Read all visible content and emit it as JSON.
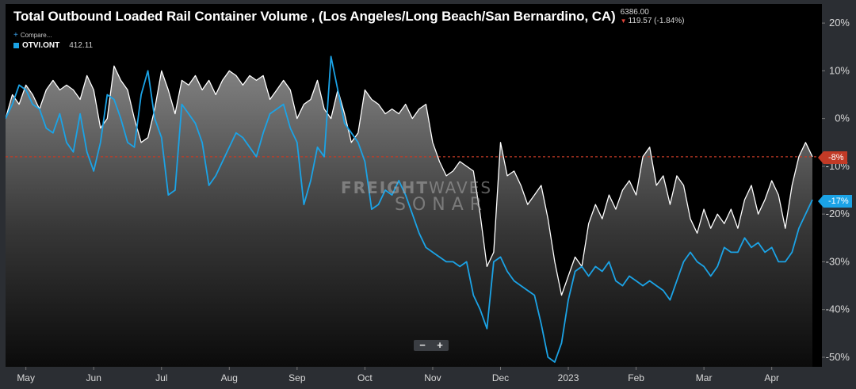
{
  "header": {
    "title": "Total Outbound Loaded Rail Container Volume , (Los Angeles/Long Beach/San Bernardino, CA)",
    "last_value": "6386.00",
    "change": "119.57 (-1.84%)"
  },
  "legend": {
    "compare_label": "Compare...",
    "series_symbol": "OTVI.ONT",
    "series_value": "412.11"
  },
  "watermark": {
    "line1_bold": "FREIGHT",
    "line1_thin": "WAVES",
    "line2": "SONAR"
  },
  "zoom": {
    "minus": "−",
    "plus": "+"
  },
  "tags": {
    "white_series": "-8%",
    "blue_series": "-17%"
  },
  "colors": {
    "white_series": "#ffffff",
    "blue_series": "#1ba3e6",
    "tag_red": "#c23a26"
  },
  "chart_data": {
    "type": "line",
    "title": "Total Outbound Loaded Rail Container Volume , (Los Angeles/Long Beach/San Bernardino, CA)",
    "ylim": [
      -52,
      24
    ],
    "y_ticks": [
      "20%",
      "10%",
      "0%",
      "-10%",
      "-20%",
      "-30%",
      "-40%",
      "-50%"
    ],
    "y_tick_values": [
      20,
      10,
      0,
      -10,
      -20,
      -30,
      -40,
      -50
    ],
    "x_ticks": [
      "May",
      "Jun",
      "Jul",
      "Aug",
      "Sep",
      "Oct",
      "Nov",
      "Dec",
      "2023",
      "Feb",
      "Mar",
      "Apr"
    ],
    "x_tick_positions": [
      0.3,
      1.3,
      2.3,
      3.3,
      4.3,
      5.3,
      6.3,
      7.3,
      8.3,
      9.3,
      10.3,
      11.3
    ],
    "x_range": [
      0,
      11.9
    ],
    "reference_line": -8,
    "series": [
      {
        "name": "Total Outbound Loaded Rail Container Volume",
        "color": "#ffffff",
        "area": true,
        "points": [
          [
            0.0,
            0
          ],
          [
            0.1,
            5
          ],
          [
            0.2,
            3
          ],
          [
            0.3,
            7
          ],
          [
            0.4,
            5
          ],
          [
            0.5,
            2
          ],
          [
            0.6,
            6
          ],
          [
            0.7,
            8
          ],
          [
            0.8,
            6
          ],
          [
            0.9,
            7
          ],
          [
            1.0,
            6
          ],
          [
            1.1,
            4
          ],
          [
            1.2,
            9
          ],
          [
            1.3,
            6
          ],
          [
            1.4,
            -2
          ],
          [
            1.5,
            0
          ],
          [
            1.6,
            11
          ],
          [
            1.7,
            8
          ],
          [
            1.8,
            6
          ],
          [
            1.9,
            0
          ],
          [
            2.0,
            -5
          ],
          [
            2.1,
            -4
          ],
          [
            2.2,
            2
          ],
          [
            2.3,
            10
          ],
          [
            2.4,
            6
          ],
          [
            2.5,
            1
          ],
          [
            2.6,
            8
          ],
          [
            2.7,
            7
          ],
          [
            2.8,
            9
          ],
          [
            2.9,
            6
          ],
          [
            3.0,
            8
          ],
          [
            3.1,
            5
          ],
          [
            3.2,
            8
          ],
          [
            3.3,
            10
          ],
          [
            3.4,
            9
          ],
          [
            3.5,
            7
          ],
          [
            3.6,
            9
          ],
          [
            3.7,
            8
          ],
          [
            3.8,
            9
          ],
          [
            3.9,
            4
          ],
          [
            4.0,
            6
          ],
          [
            4.1,
            8
          ],
          [
            4.2,
            6
          ],
          [
            4.3,
            0
          ],
          [
            4.4,
            3
          ],
          [
            4.5,
            4
          ],
          [
            4.6,
            8
          ],
          [
            4.7,
            2
          ],
          [
            4.8,
            0
          ],
          [
            4.9,
            6
          ],
          [
            5.0,
            1
          ],
          [
            5.1,
            -5
          ],
          [
            5.2,
            -3
          ],
          [
            5.3,
            6
          ],
          [
            5.4,
            4
          ],
          [
            5.5,
            3
          ],
          [
            5.6,
            1
          ],
          [
            5.7,
            2
          ],
          [
            5.8,
            1
          ],
          [
            5.9,
            3
          ],
          [
            6.0,
            0
          ],
          [
            6.1,
            2
          ],
          [
            6.2,
            3
          ],
          [
            6.3,
            -5
          ],
          [
            6.4,
            -9
          ],
          [
            6.5,
            -12
          ],
          [
            6.6,
            -11
          ],
          [
            6.7,
            -9
          ],
          [
            6.8,
            -10
          ],
          [
            6.9,
            -11
          ],
          [
            7.0,
            -20
          ],
          [
            7.1,
            -31
          ],
          [
            7.2,
            -28
          ],
          [
            7.3,
            -5
          ],
          [
            7.4,
            -12
          ],
          [
            7.5,
            -11
          ],
          [
            7.6,
            -14
          ],
          [
            7.7,
            -18
          ],
          [
            7.8,
            -16
          ],
          [
            7.9,
            -14
          ],
          [
            8.0,
            -21
          ],
          [
            8.1,
            -30
          ],
          [
            8.2,
            -37
          ],
          [
            8.3,
            -33
          ],
          [
            8.4,
            -29
          ],
          [
            8.5,
            -31
          ],
          [
            8.6,
            -22
          ],
          [
            8.7,
            -18
          ],
          [
            8.8,
            -21
          ],
          [
            8.9,
            -16
          ],
          [
            9.0,
            -19
          ],
          [
            9.1,
            -15
          ],
          [
            9.2,
            -13
          ],
          [
            9.3,
            -16
          ],
          [
            9.4,
            -8
          ],
          [
            9.5,
            -6
          ],
          [
            9.6,
            -14
          ],
          [
            9.7,
            -12
          ],
          [
            9.8,
            -18
          ],
          [
            9.9,
            -12
          ],
          [
            10.0,
            -14
          ],
          [
            10.1,
            -21
          ],
          [
            10.2,
            -24
          ],
          [
            10.3,
            -19
          ],
          [
            10.4,
            -23
          ],
          [
            10.5,
            -20
          ],
          [
            10.6,
            -22
          ],
          [
            10.7,
            -19
          ],
          [
            10.8,
            -23
          ],
          [
            10.9,
            -17
          ],
          [
            11.0,
            -14
          ],
          [
            11.1,
            -20
          ],
          [
            11.2,
            -17
          ],
          [
            11.3,
            -13
          ],
          [
            11.4,
            -16
          ],
          [
            11.5,
            -23
          ],
          [
            11.6,
            -14
          ],
          [
            11.7,
            -8
          ],
          [
            11.8,
            -5
          ],
          [
            11.9,
            -8
          ]
        ]
      },
      {
        "name": "OTVI.ONT",
        "color": "#1ba3e6",
        "area": false,
        "points": [
          [
            0.0,
            0
          ],
          [
            0.1,
            3
          ],
          [
            0.2,
            7
          ],
          [
            0.3,
            6
          ],
          [
            0.4,
            3
          ],
          [
            0.5,
            2
          ],
          [
            0.6,
            -2
          ],
          [
            0.7,
            -3
          ],
          [
            0.8,
            1
          ],
          [
            0.9,
            -5
          ],
          [
            1.0,
            -7
          ],
          [
            1.1,
            1
          ],
          [
            1.2,
            -7
          ],
          [
            1.3,
            -11
          ],
          [
            1.4,
            -5
          ],
          [
            1.5,
            5
          ],
          [
            1.6,
            4
          ],
          [
            1.7,
            0
          ],
          [
            1.8,
            -5
          ],
          [
            1.9,
            -6
          ],
          [
            2.0,
            5
          ],
          [
            2.1,
            10
          ],
          [
            2.2,
            0
          ],
          [
            2.3,
            -4
          ],
          [
            2.4,
            -16
          ],
          [
            2.5,
            -15
          ],
          [
            2.6,
            3
          ],
          [
            2.7,
            1
          ],
          [
            2.8,
            -1
          ],
          [
            2.9,
            -5
          ],
          [
            3.0,
            -14
          ],
          [
            3.1,
            -12
          ],
          [
            3.2,
            -9
          ],
          [
            3.3,
            -6
          ],
          [
            3.4,
            -3
          ],
          [
            3.5,
            -4
          ],
          [
            3.6,
            -6
          ],
          [
            3.7,
            -8
          ],
          [
            3.8,
            -3
          ],
          [
            3.9,
            1
          ],
          [
            4.0,
            2
          ],
          [
            4.1,
            3
          ],
          [
            4.2,
            -2
          ],
          [
            4.3,
            -5
          ],
          [
            4.4,
            -18
          ],
          [
            4.5,
            -13
          ],
          [
            4.6,
            -6
          ],
          [
            4.7,
            -8
          ],
          [
            4.8,
            13
          ],
          [
            4.9,
            6
          ],
          [
            5.0,
            -1
          ],
          [
            5.1,
            -3
          ],
          [
            5.2,
            -5
          ],
          [
            5.3,
            -9
          ],
          [
            5.4,
            -19
          ],
          [
            5.5,
            -18
          ],
          [
            5.6,
            -15
          ],
          [
            5.7,
            -16
          ],
          [
            5.8,
            -13
          ],
          [
            5.9,
            -16
          ],
          [
            6.0,
            -20
          ],
          [
            6.1,
            -24
          ],
          [
            6.2,
            -27
          ],
          [
            6.3,
            -28
          ],
          [
            6.4,
            -29
          ],
          [
            6.5,
            -30
          ],
          [
            6.6,
            -30
          ],
          [
            6.7,
            -31
          ],
          [
            6.8,
            -30
          ],
          [
            6.9,
            -37
          ],
          [
            7.0,
            -40
          ],
          [
            7.1,
            -44
          ],
          [
            7.2,
            -30
          ],
          [
            7.3,
            -29
          ],
          [
            7.4,
            -32
          ],
          [
            7.5,
            -34
          ],
          [
            7.6,
            -35
          ],
          [
            7.7,
            -36
          ],
          [
            7.8,
            -37
          ],
          [
            7.9,
            -43
          ],
          [
            8.0,
            -50
          ],
          [
            8.1,
            -51
          ],
          [
            8.2,
            -47
          ],
          [
            8.3,
            -38
          ],
          [
            8.4,
            -32
          ],
          [
            8.5,
            -31
          ],
          [
            8.6,
            -33
          ],
          [
            8.7,
            -31
          ],
          [
            8.8,
            -32
          ],
          [
            8.9,
            -30
          ],
          [
            9.0,
            -34
          ],
          [
            9.1,
            -35
          ],
          [
            9.2,
            -33
          ],
          [
            9.3,
            -34
          ],
          [
            9.4,
            -35
          ],
          [
            9.5,
            -34
          ],
          [
            9.6,
            -35
          ],
          [
            9.7,
            -36
          ],
          [
            9.8,
            -38
          ],
          [
            9.9,
            -34
          ],
          [
            10.0,
            -30
          ],
          [
            10.1,
            -28
          ],
          [
            10.2,
            -30
          ],
          [
            10.3,
            -31
          ],
          [
            10.4,
            -33
          ],
          [
            10.5,
            -31
          ],
          [
            10.6,
            -27
          ],
          [
            10.7,
            -28
          ],
          [
            10.8,
            -28
          ],
          [
            10.9,
            -25
          ],
          [
            11.0,
            -27
          ],
          [
            11.1,
            -26
          ],
          [
            11.2,
            -28
          ],
          [
            11.3,
            -27
          ],
          [
            11.4,
            -30
          ],
          [
            11.5,
            -30
          ],
          [
            11.6,
            -28
          ],
          [
            11.7,
            -23
          ],
          [
            11.8,
            -20
          ],
          [
            11.9,
            -17
          ]
        ]
      }
    ]
  }
}
